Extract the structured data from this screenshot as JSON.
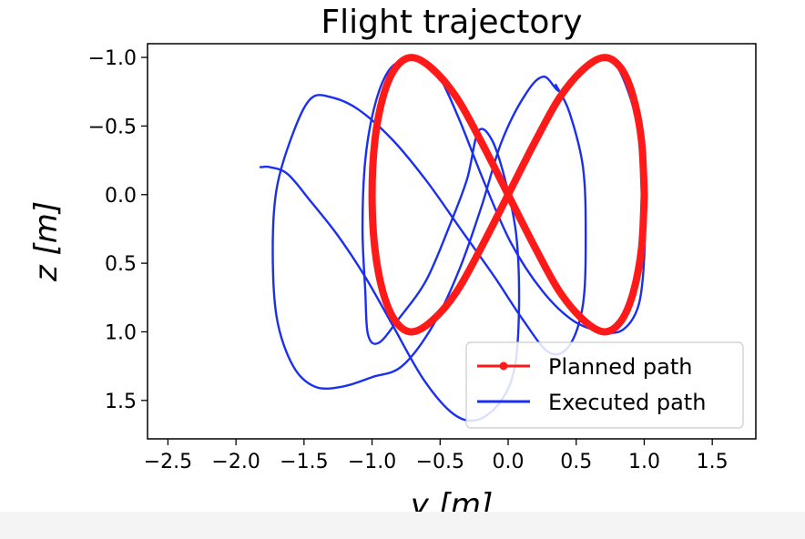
{
  "chart_data": {
    "type": "line",
    "title": "Flight trajectory",
    "xlabel": "y [m]",
    "ylabel": "z [m]",
    "xlim": [
      -2.65,
      1.82
    ],
    "ylim": [
      1.78,
      -1.1
    ],
    "y_inverted": true,
    "grid": false,
    "legend_placement": "bottom-right",
    "x_ticks": [
      "−2.5",
      "−2.0",
      "−1.5",
      "−1.0",
      "−0.5",
      "0.0",
      "0.5",
      "1.0",
      "1.5"
    ],
    "x_tick_values": [
      -2.5,
      -2.0,
      -1.5,
      -1.0,
      -0.5,
      0.0,
      0.5,
      1.0,
      1.5
    ],
    "y_ticks": [
      "−1.0",
      "−0.5",
      "0.0",
      "0.5",
      "1.0",
      "1.5"
    ],
    "y_tick_values": [
      -1.0,
      -0.5,
      0.0,
      0.5,
      1.0,
      1.5
    ],
    "series": [
      {
        "name": "Planned path",
        "color": "#ff1a1a",
        "marker": "dot",
        "points": [
          [
            1.0,
            0.0
          ],
          [
            0.98,
            -0.39
          ],
          [
            0.92,
            -0.71
          ],
          [
            0.83,
            -0.92
          ],
          [
            0.71,
            -1.0
          ],
          [
            0.56,
            -0.92
          ],
          [
            0.38,
            -0.71
          ],
          [
            0.2,
            -0.39
          ],
          [
            0.0,
            0.0
          ],
          [
            -0.2,
            0.39
          ],
          [
            -0.38,
            0.71
          ],
          [
            -0.56,
            0.92
          ],
          [
            -0.71,
            1.0
          ],
          [
            -0.83,
            0.92
          ],
          [
            -0.92,
            0.71
          ],
          [
            -0.98,
            0.39
          ],
          [
            -1.0,
            0.0
          ],
          [
            -0.98,
            -0.39
          ],
          [
            -0.92,
            -0.71
          ],
          [
            -0.83,
            -0.92
          ],
          [
            -0.71,
            -1.0
          ],
          [
            -0.56,
            -0.92
          ],
          [
            -0.38,
            -0.71
          ],
          [
            -0.2,
            -0.39
          ],
          [
            0.0,
            0.0
          ],
          [
            0.2,
            0.39
          ],
          [
            0.38,
            0.71
          ],
          [
            0.56,
            0.92
          ],
          [
            0.71,
            1.0
          ],
          [
            0.83,
            0.92
          ],
          [
            0.92,
            0.71
          ],
          [
            0.98,
            0.39
          ],
          [
            1.0,
            0.0
          ]
        ]
      },
      {
        "name": "Executed path",
        "color": "#1a2ff0",
        "marker": "none",
        "points": [
          [
            1.0,
            0.0
          ],
          [
            1.0,
            0.45
          ],
          [
            0.96,
            0.8
          ],
          [
            0.85,
            0.98
          ],
          [
            0.7,
            1.0
          ],
          [
            0.48,
            0.92
          ],
          [
            0.25,
            0.7
          ],
          [
            0.02,
            0.35
          ],
          [
            -0.18,
            -0.1
          ],
          [
            -0.36,
            -0.55
          ],
          [
            -0.5,
            -0.85
          ],
          [
            -0.62,
            -0.98
          ],
          [
            -0.75,
            -0.99
          ],
          [
            -0.88,
            -0.9
          ],
          [
            -0.98,
            -0.65
          ],
          [
            -1.05,
            -0.25
          ],
          [
            -1.07,
            0.25
          ],
          [
            -1.05,
            0.7
          ],
          [
            -1.03,
            1.02
          ],
          [
            -0.95,
            1.08
          ],
          [
            -0.8,
            0.9
          ],
          [
            -0.6,
            0.62
          ],
          [
            -0.42,
            0.2
          ],
          [
            -0.3,
            -0.12
          ],
          [
            -0.22,
            -0.46
          ],
          [
            -0.12,
            -0.4
          ],
          [
            -0.02,
            -0.1
          ],
          [
            0.06,
            0.3
          ],
          [
            0.08,
            0.8
          ],
          [
            0.05,
            1.25
          ],
          [
            -0.05,
            1.5
          ],
          [
            -0.22,
            1.64
          ],
          [
            -0.4,
            1.6
          ],
          [
            -0.62,
            1.35
          ],
          [
            -0.85,
            0.95
          ],
          [
            -1.05,
            0.6
          ],
          [
            -1.25,
            0.3
          ],
          [
            -1.45,
            0.05
          ],
          [
            -1.62,
            -0.15
          ],
          [
            -1.75,
            -0.2
          ],
          [
            -1.82,
            -0.2
          ]
        ]
      },
      {
        "name": "Executed path",
        "color": "#1a2ff0",
        "marker": "none",
        "points": [
          [
            1.0,
            0.0
          ],
          [
            0.98,
            -0.3
          ],
          [
            0.9,
            -0.7
          ],
          [
            0.75,
            -1.0
          ],
          [
            0.58,
            -0.95
          ],
          [
            0.4,
            -0.75
          ],
          [
            0.26,
            -0.86
          ],
          [
            0.12,
            -0.72
          ],
          [
            -0.05,
            -0.38
          ],
          [
            -0.2,
            0.1
          ],
          [
            -0.36,
            0.55
          ],
          [
            -0.55,
            0.95
          ],
          [
            -0.78,
            1.25
          ],
          [
            -1.0,
            1.33
          ],
          [
            -1.22,
            1.4
          ],
          [
            -1.42,
            1.4
          ],
          [
            -1.58,
            1.25
          ],
          [
            -1.7,
            0.9
          ],
          [
            -1.73,
            0.4
          ],
          [
            -1.7,
            -0.05
          ],
          [
            -1.58,
            -0.45
          ],
          [
            -1.45,
            -0.7
          ],
          [
            -1.3,
            -0.71
          ],
          [
            -1.1,
            -0.62
          ],
          [
            -0.85,
            -0.4
          ],
          [
            -0.6,
            -0.1
          ],
          [
            -0.35,
            0.25
          ],
          [
            -0.1,
            0.6
          ],
          [
            0.1,
            0.9
          ],
          [
            0.3,
            1.15
          ],
          [
            0.45,
            1.1
          ],
          [
            0.55,
            0.8
          ],
          [
            0.57,
            0.3
          ],
          [
            0.55,
            -0.2
          ],
          [
            0.45,
            -0.6
          ],
          [
            0.35,
            -0.8
          ]
        ]
      }
    ]
  }
}
